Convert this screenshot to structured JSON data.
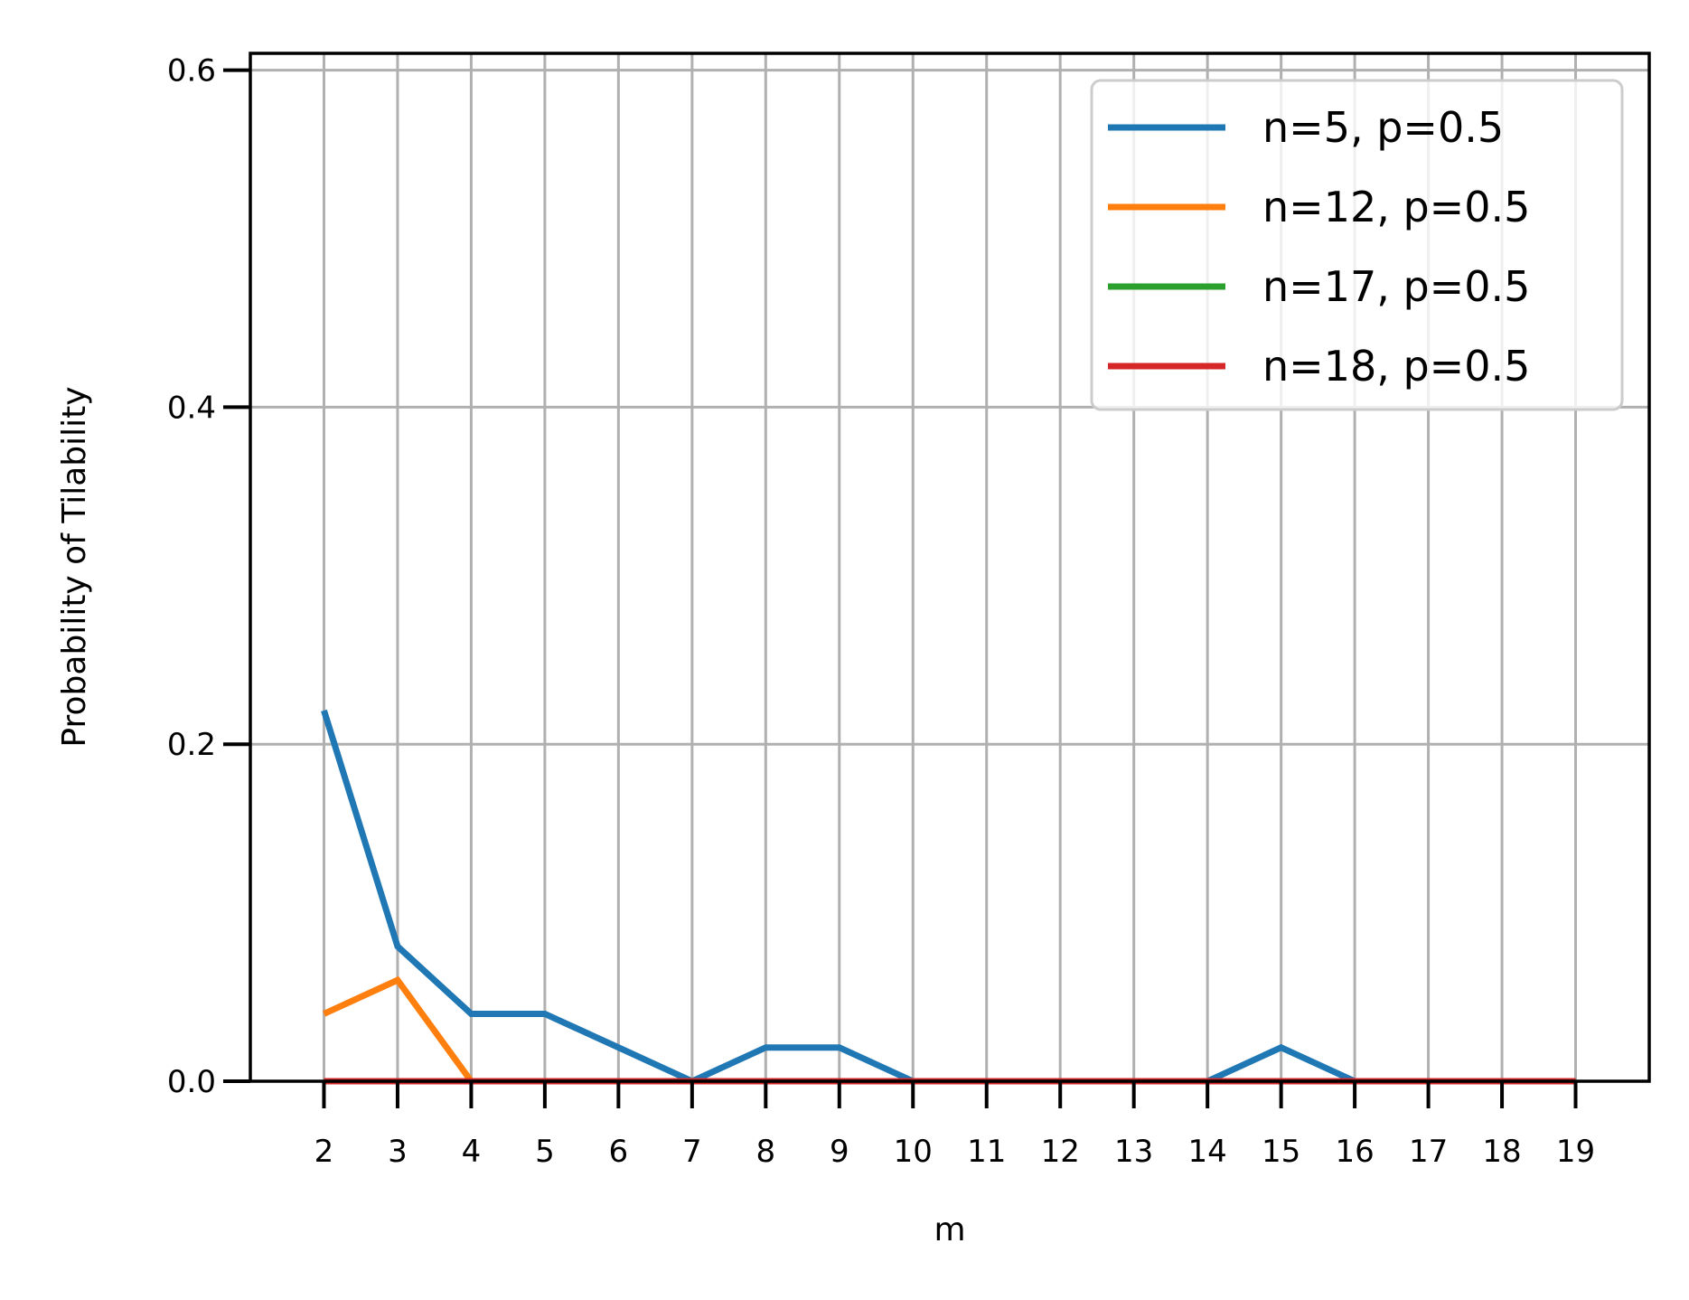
{
  "chart_data": {
    "type": "line",
    "xlabel": "m",
    "ylabel": "Probability of Tilability",
    "x": [
      2,
      3,
      4,
      5,
      6,
      7,
      8,
      9,
      10,
      11,
      12,
      13,
      14,
      15,
      16,
      17,
      18,
      19
    ],
    "xticks": [
      "2",
      "3",
      "4",
      "5",
      "6",
      "7",
      "8",
      "9",
      "10",
      "11",
      "12",
      "13",
      "14",
      "15",
      "16",
      "17",
      "18",
      "19"
    ],
    "yticks": [
      "0.0",
      "0.2",
      "0.4",
      "0.6"
    ],
    "xlim": [
      1,
      20
    ],
    "ylim": [
      0,
      0.61
    ],
    "grid": true,
    "legend_position": "top-right",
    "series": [
      {
        "name": "n=5, p=0.5",
        "color": "#1f77b4",
        "values": [
          0.22,
          0.08,
          0.04,
          0.04,
          0.02,
          0.0,
          0.02,
          0.02,
          0.0,
          0.0,
          0.0,
          0.0,
          0.0,
          0.02,
          0.0,
          0.0,
          0.0,
          0.0
        ]
      },
      {
        "name": "n=12, p=0.5",
        "color": "#ff7f0e",
        "values": [
          0.04,
          0.06,
          0.0,
          0.0,
          0.0,
          0.0,
          0.0,
          0.0,
          0.0,
          0.0,
          0.0,
          0.0,
          0.0,
          0.0,
          0.0,
          0.0,
          0.0,
          0.0
        ]
      },
      {
        "name": "n=17, p=0.5",
        "color": "#2ca02c",
        "values": [
          0.0,
          0.0,
          0.0,
          0.0,
          0.0,
          0.0,
          0.0,
          0.0,
          0.0,
          0.0,
          0.0,
          0.0,
          0.0,
          0.0,
          0.0,
          0.0,
          0.0,
          0.0
        ]
      },
      {
        "name": "n=18, p=0.5",
        "color": "#d62728",
        "values": [
          0.0,
          0.0,
          0.0,
          0.0,
          0.0,
          0.0,
          0.0,
          0.0,
          0.0,
          0.0,
          0.0,
          0.0,
          0.0,
          0.0,
          0.0,
          0.0,
          0.0,
          0.0
        ]
      }
    ]
  }
}
